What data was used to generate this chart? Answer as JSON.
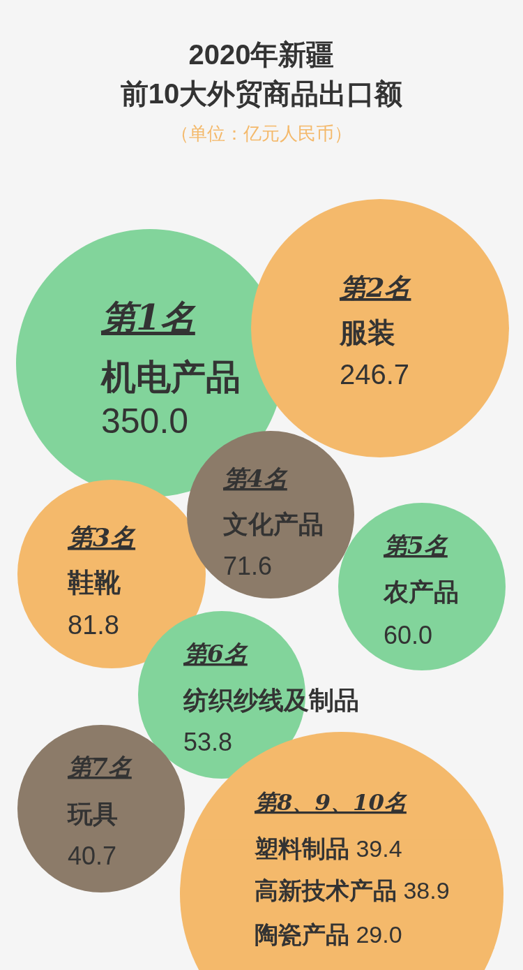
{
  "chart_data": {
    "type": "other",
    "title": "2020年新疆前10大外贸商品出口额",
    "subtitle": "（单位：亿元人民币）",
    "categories": [
      "机电产品",
      "服装",
      "鞋靴",
      "文化产品",
      "农产品",
      "纺织纱线及制品",
      "玩具",
      "塑料制品",
      "高新技术产品",
      "陶瓷产品"
    ],
    "values": [
      350.0,
      246.7,
      81.8,
      71.6,
      60.0,
      53.8,
      40.7,
      39.4,
      38.9,
      29.0
    ],
    "value_labels": [
      "350.0",
      "246.7",
      "81.8",
      "71.6",
      "60.0",
      "53.8",
      "40.7",
      "39.4",
      "38.9",
      "29.0"
    ],
    "colors": [
      "#82d49b",
      "#f4b96b",
      "#f4b96b",
      "#8c7b69",
      "#82d49b",
      "#82d49b",
      "#8c7b69",
      "#f4b96b",
      "#f4b96b",
      "#f4b96b"
    ],
    "annotations": [
      "第1名",
      "第2名",
      "第3名",
      "第4名",
      "第5名",
      "第6名",
      "第7名",
      "第8、9、10名"
    ]
  }
}
